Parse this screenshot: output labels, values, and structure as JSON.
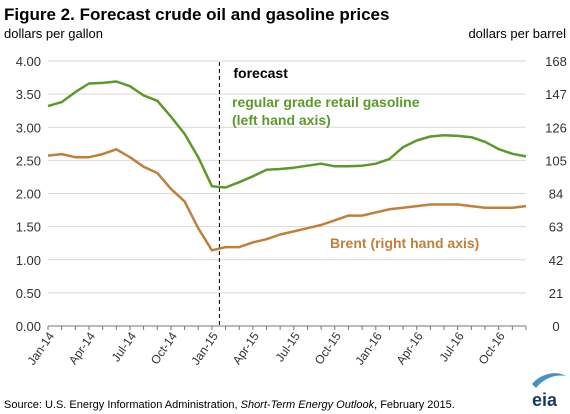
{
  "chart_data": {
    "type": "line",
    "title": "Figure 2.  Forecast crude oil and gasoline prices",
    "ylabel_left": "dollars  per gallon",
    "ylabel_right": "dollars per barrel",
    "ylim_left": [
      0,
      4
    ],
    "ylim_right": [
      0,
      168
    ],
    "yticks_left": [
      "0.00",
      "0.50",
      "1.00",
      "1.50",
      "2.00",
      "2.50",
      "3.00",
      "3.50",
      "4.00"
    ],
    "yticks_right": [
      "0",
      "21",
      "42",
      "63",
      "84",
      "105",
      "126",
      "147",
      "168"
    ],
    "x": [
      "Jan-14",
      "Feb-14",
      "Mar-14",
      "Apr-14",
      "May-14",
      "Jun-14",
      "Jul-14",
      "Aug-14",
      "Sep-14",
      "Oct-14",
      "Nov-14",
      "Dec-14",
      "Jan-15",
      "Feb-15",
      "Mar-15",
      "Apr-15",
      "May-15",
      "Jun-15",
      "Jul-15",
      "Aug-15",
      "Sep-15",
      "Oct-15",
      "Nov-15",
      "Dec-15",
      "Jan-16",
      "Feb-16",
      "Mar-16",
      "Apr-16",
      "May-16",
      "Jun-16",
      "Jul-16",
      "Aug-16",
      "Sep-16",
      "Oct-16",
      "Nov-16",
      "Dec-16"
    ],
    "xtick_labels": [
      "Jan-14",
      "Apr-14",
      "Jul-14",
      "Oct-14",
      "Jan-15",
      "Apr-15",
      "Jul-15",
      "Oct-15",
      "Jan-16",
      "Apr-16",
      "Jul-16",
      "Oct-16"
    ],
    "forecast_start": "Feb-15",
    "forecast_label": "forecast",
    "series": [
      {
        "name": "regular  grade retail gasoline",
        "name_line2": "(left hand axis)",
        "axis": "left",
        "color": "#5a9a2a",
        "values": [
          3.32,
          3.38,
          3.53,
          3.66,
          3.67,
          3.69,
          3.62,
          3.48,
          3.4,
          3.16,
          2.9,
          2.55,
          2.11,
          2.09,
          2.17,
          2.26,
          2.36,
          2.37,
          2.39,
          2.42,
          2.45,
          2.41,
          2.41,
          2.42,
          2.45,
          2.52,
          2.7,
          2.8,
          2.86,
          2.88,
          2.87,
          2.85,
          2.78,
          2.67,
          2.6,
          2.56
        ]
      },
      {
        "name": "Brent (right hand axis)",
        "axis": "right",
        "color": "#c0803a",
        "values": [
          108,
          109,
          107,
          107,
          109,
          112,
          107,
          101,
          97,
          87,
          79,
          62,
          48,
          50,
          50,
          53,
          55,
          58,
          60,
          62,
          64,
          67,
          70,
          70,
          72,
          74,
          75,
          76,
          77,
          77,
          77,
          76,
          75,
          75,
          75,
          76
        ]
      }
    ]
  },
  "source": {
    "prefix": "Source:  U.S. Energy Information Administration, ",
    "italic": "Short-Term Energy Outlook",
    "suffix": ", February 2015."
  },
  "logo": {
    "text": "eia"
  }
}
